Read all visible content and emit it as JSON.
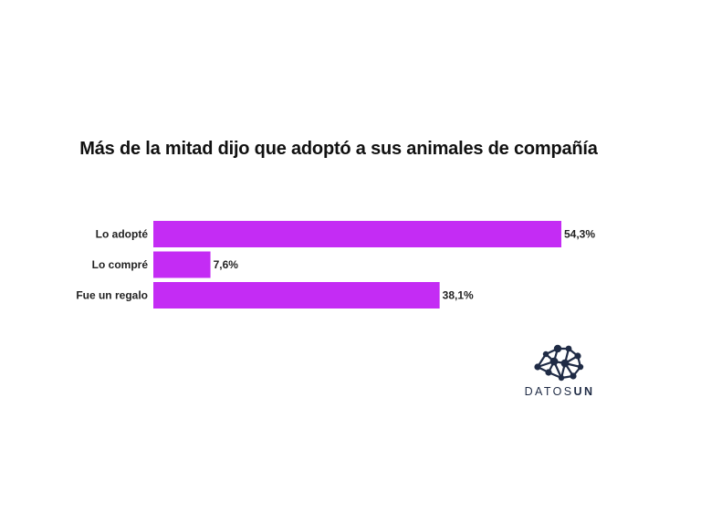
{
  "chart_data": {
    "type": "bar",
    "orientation": "horizontal",
    "title": "Más de la mitad dijo que adoptó a sus animales de compañía",
    "categories": [
      "Lo adopté",
      "Lo compré",
      "Fue un regalo"
    ],
    "values": [
      54.3,
      7.6,
      38.1
    ],
    "value_labels": [
      "54,3%",
      "7,6%",
      "38,1%"
    ],
    "unit": "%",
    "xlim": [
      0,
      54.3
    ],
    "grid": false,
    "bar_color": "#c42cf4"
  },
  "branding": {
    "logo_text_regular": "DATOS",
    "logo_text_bold": "UN",
    "logo_color": "#1f2b45",
    "logo_icon": "network-nodes-icon"
  }
}
